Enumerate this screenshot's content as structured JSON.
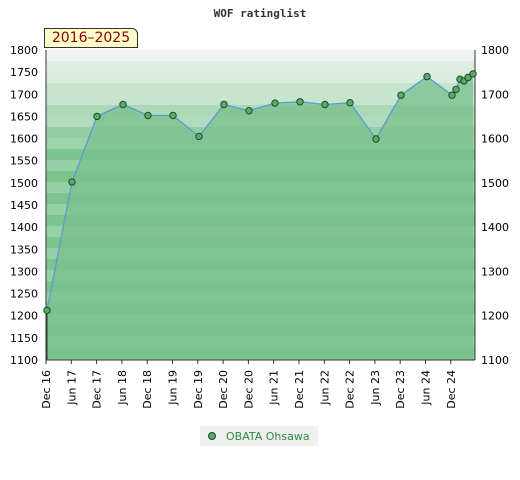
{
  "chart_data": {
    "type": "area",
    "title": "WOF ratinglist",
    "period": "2016–2025",
    "ylim": [
      1100,
      1800
    ],
    "yticks": [
      1100,
      1150,
      1200,
      1250,
      1300,
      1350,
      1400,
      1450,
      1500,
      1550,
      1600,
      1650,
      1700,
      1750,
      1800
    ],
    "yticks_right": [
      1100,
      1200,
      1300,
      1400,
      1500,
      1600,
      1700,
      1800
    ],
    "xticks": [
      "Dec 16",
      "Jun 17",
      "Dec 17",
      "Jun 18",
      "Dec 18",
      "Jun 19",
      "Dec 19",
      "Dec 20",
      "Dec 20",
      "Jun 21",
      "Dec 21",
      "Jun 22",
      "Dec 22",
      "Jun 23",
      "Dec 23",
      "Jun 24",
      "Dec 24"
    ],
    "series": [
      {
        "name": "OBATA Ohsawa",
        "points": [
          {
            "x": "Dec 16",
            "y": 1212
          },
          {
            "x": "Jun 17",
            "y": 1502
          },
          {
            "x": "Dec 17",
            "y": 1650
          },
          {
            "x": "Jun 18",
            "y": 1677
          },
          {
            "x": "Dec 18",
            "y": 1652
          },
          {
            "x": "Jun 19",
            "y": 1652
          },
          {
            "x": "Dec 19",
            "y": 1605
          },
          {
            "x": "Dec 20",
            "y": 1677
          },
          {
            "x": "Dec 20",
            "y": 1663
          },
          {
            "x": "Jun 21",
            "y": 1680
          },
          {
            "x": "Dec 21",
            "y": 1683
          },
          {
            "x": "Jun 22",
            "y": 1677
          },
          {
            "x": "Dec 22",
            "y": 1681
          },
          {
            "x": "Jun 23",
            "y": 1599
          },
          {
            "x": "Dec 23",
            "y": 1698
          },
          {
            "x": "Jun 24",
            "y": 1740
          },
          {
            "x": "Dec 24",
            "y": 1698
          },
          {
            "x": "Dec 24",
            "y": 1711
          },
          {
            "x": "Dec 24",
            "y": 1734
          },
          {
            "x": "Dec 24",
            "y": 1730
          },
          {
            "x": "Dec 24",
            "y": 1738
          },
          {
            "x": "Dec 24",
            "y": 1746
          }
        ]
      }
    ],
    "legend": "bottom-center",
    "colors": {
      "line": "#5b9bd5",
      "marker": "#5aaa6a",
      "marker_stroke": "#1d4d24",
      "fill": "#78c08c",
      "band_light": "#e8f5ea",
      "band_dark": "#9fd3ad",
      "legend_text": "#2e8b3e",
      "period_text": "#8b0000"
    }
  }
}
